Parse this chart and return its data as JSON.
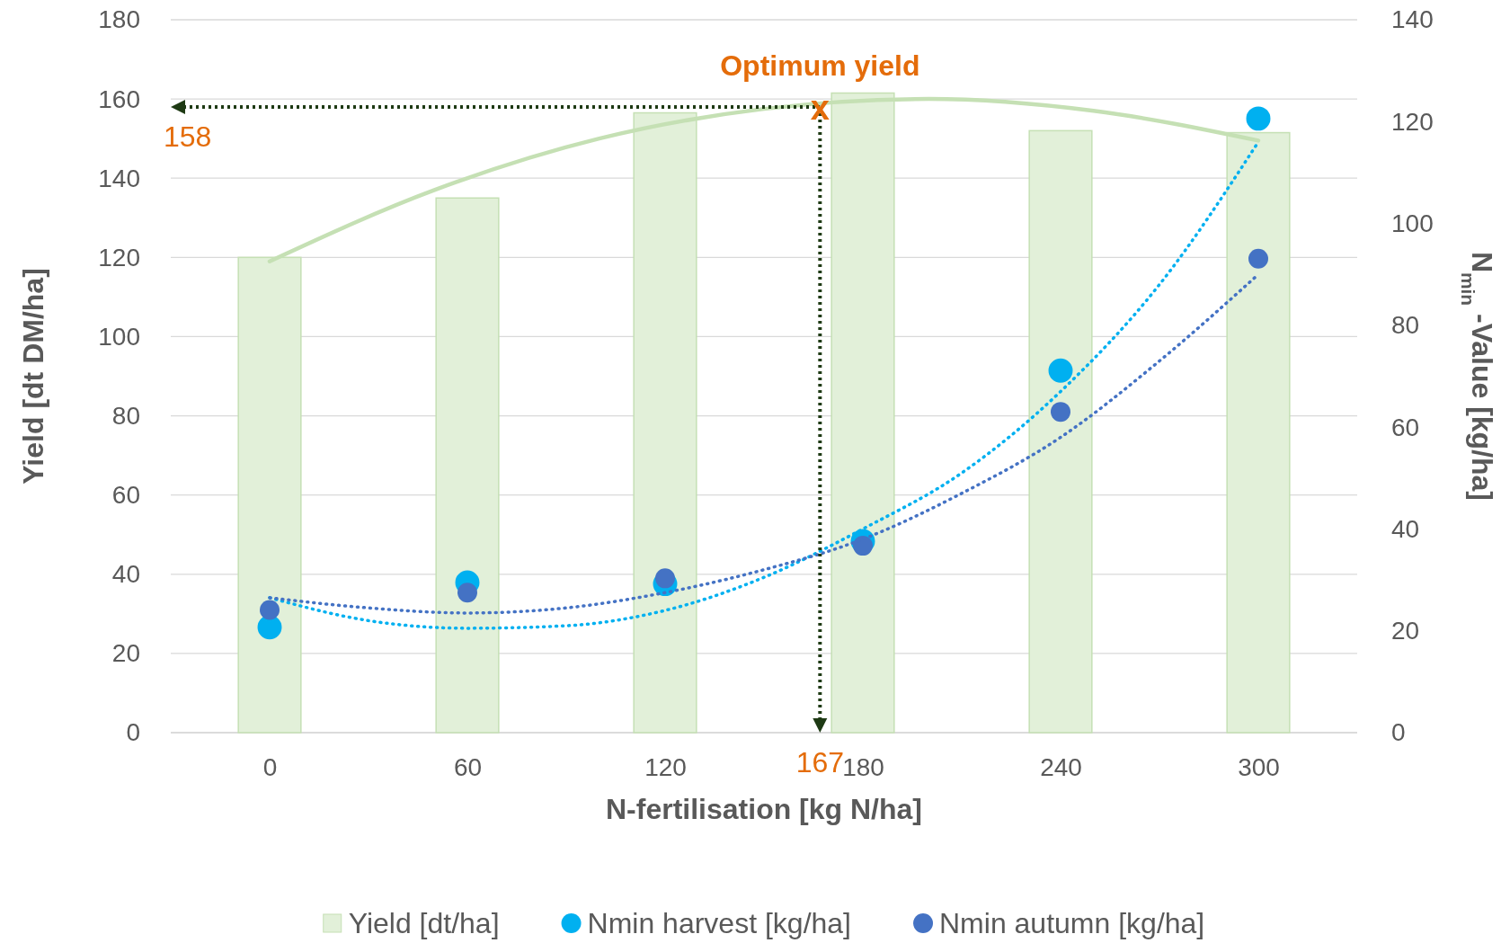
{
  "chart_data": {
    "type": "bar",
    "xlabel": "N-fertilisation [kg N/ha]",
    "ylabel": "Yield [dt DM/ha]",
    "y2label": "N$_{min}$ -Value [kg/ha]",
    "x": [
      0,
      60,
      120,
      180,
      240,
      300
    ],
    "xlim": [
      -30,
      330
    ],
    "xticks": [
      0,
      60,
      120,
      180,
      240,
      300
    ],
    "ylim": [
      0,
      180
    ],
    "yticks": [
      0,
      20,
      40,
      60,
      80,
      100,
      120,
      140,
      160,
      180
    ],
    "y2lim": [
      0,
      140
    ],
    "y2ticks": [
      0,
      20,
      40,
      60,
      80,
      100,
      120,
      140
    ],
    "grid": "y",
    "legend": "bottom",
    "series": [
      {
        "name": "Yield [dt/ha]",
        "color": "#e2f0d9",
        "values": [
          120,
          135,
          156.5,
          161.5,
          152,
          151.5
        ]
      },
      {
        "type": "line",
        "color": "#c5e0b4",
        "line_style": "solid",
        "marker": "none",
        "x": [
          0,
          50,
          100,
          150,
          200,
          250,
          300
        ],
        "values": [
          119,
          137,
          150,
          157.5,
          160,
          157,
          149.5
        ]
      },
      {
        "name": "Nmin harvest [kg/ha]",
        "type": "scatter",
        "axis": "y2",
        "color": "#00b0f0",
        "marker": "circle",
        "values": [
          20.7,
          29.5,
          29.2,
          37.6,
          71.1,
          120.6
        ]
      },
      {
        "type": "line",
        "axis": "y2",
        "color": "#00b0f0",
        "line_style": "dotted",
        "marker": "none",
        "x": [
          0,
          30,
          60,
          90,
          120,
          150,
          180,
          210,
          240,
          270,
          300
        ],
        "values": [
          26.5,
          22,
          20.5,
          21,
          24,
          30.5,
          40,
          51,
          67,
          88,
          116
        ]
      },
      {
        "name": "Nmin autumn [kg/ha]",
        "type": "scatter",
        "axis": "y2",
        "color": "#4472c4",
        "marker": "circle",
        "values": [
          24.1,
          27.5,
          30.3,
          36.7,
          63,
          93.1
        ]
      },
      {
        "type": "line",
        "axis": "y2",
        "color": "#4472c4",
        "line_style": "dotted",
        "marker": "none",
        "x": [
          0,
          30,
          60,
          90,
          120,
          150,
          180,
          210,
          240,
          270,
          300
        ],
        "values": [
          26.5,
          24.5,
          23.5,
          24.5,
          27.5,
          32,
          38,
          47,
          58,
          73,
          90
        ]
      }
    ],
    "annotations": [
      "Optimum yield",
      {
        "text": "x",
        "x": 167,
        "y": 158
      }
    ],
    "ref_lines": [
      {
        "axis": "y",
        "value": 158,
        "label": "158",
        "color": "#1e3a14",
        "line_style": "dotted"
      },
      {
        "axis": "x",
        "value": 167,
        "label": "167",
        "color": "#1e3a14",
        "line_style": "dotted"
      }
    ]
  }
}
